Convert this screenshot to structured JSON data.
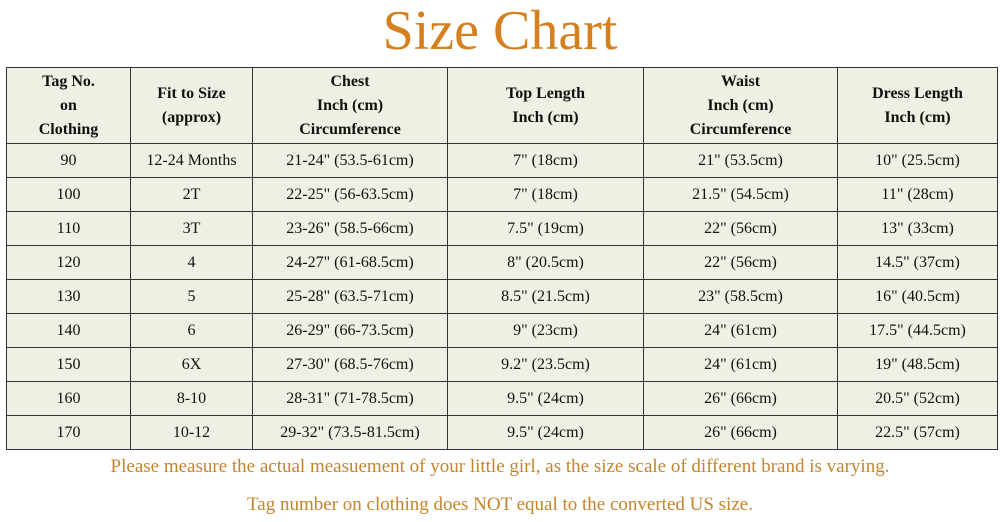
{
  "title": "Size Chart",
  "table": {
    "headers": [
      [
        "Tag No.",
        "on",
        "Clothing"
      ],
      [
        "Fit to Size",
        "(approx)"
      ],
      [
        "Chest",
        "Inch (cm)",
        "Circumference"
      ],
      [
        "Top Length",
        "Inch (cm)"
      ],
      [
        "Waist",
        "Inch (cm)",
        "Circumference"
      ],
      [
        "Dress Length",
        "Inch (cm)"
      ]
    ],
    "rows": [
      [
        "90",
        "12-24 Months",
        "21-24\" (53.5-61cm)",
        "7\" (18cm)",
        "21\" (53.5cm)",
        "10\" (25.5cm)"
      ],
      [
        "100",
        "2T",
        "22-25\" (56-63.5cm)",
        "7\" (18cm)",
        "21.5\" (54.5cm)",
        "11\" (28cm)"
      ],
      [
        "110",
        "3T",
        "23-26\" (58.5-66cm)",
        "7.5\" (19cm)",
        "22\" (56cm)",
        "13\" (33cm)"
      ],
      [
        "120",
        "4",
        "24-27\" (61-68.5cm)",
        "8\" (20.5cm)",
        "22\" (56cm)",
        "14.5\" (37cm)"
      ],
      [
        "130",
        "5",
        "25-28\" (63.5-71cm)",
        "8.5\" (21.5cm)",
        "23\" (58.5cm)",
        "16\" (40.5cm)"
      ],
      [
        "140",
        "6",
        "26-29\" (66-73.5cm)",
        "9\" (23cm)",
        "24\" (61cm)",
        "17.5\" (44.5cm)"
      ],
      [
        "150",
        "6X",
        "27-30\" (68.5-76cm)",
        "9.2\" (23.5cm)",
        "24\" (61cm)",
        "19\" (48.5cm)"
      ],
      [
        "160",
        "8-10",
        "28-31\" (71-78.5cm)",
        "9.5\" (24cm)",
        "26\" (66cm)",
        "20.5\" (52cm)"
      ],
      [
        "170",
        "10-12",
        "29-32\" (73.5-81.5cm)",
        "9.5\" (24cm)",
        "26\" (66cm)",
        "22.5\" (57cm)"
      ]
    ]
  },
  "notes": [
    "Please measure the actual measuement of your little girl, as the size scale of different brand is varying.",
    "Tag number on clothing does NOT equal to the converted US size."
  ],
  "colors": {
    "title": "#d4801f",
    "notes": "#c3842c",
    "cell_bg": "#eef0e3"
  }
}
